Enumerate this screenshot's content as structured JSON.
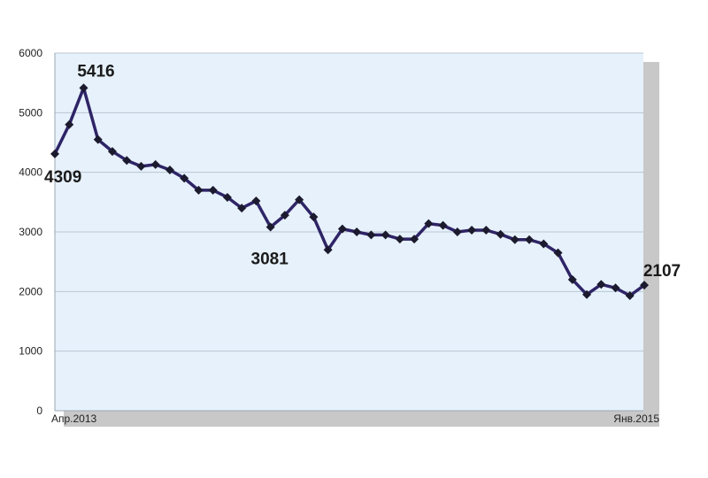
{
  "chart_data": {
    "type": "line",
    "title": "",
    "xlabel": "",
    "ylabel": "",
    "ylim": [
      0,
      6000
    ],
    "yticks": [
      0,
      1000,
      2000,
      3000,
      4000,
      5000,
      6000
    ],
    "x_tick_labels": [
      "Апр.2013",
      "Янв.2015"
    ],
    "grid": "horizontal",
    "legend": "none",
    "colors": {
      "line": "#2e2466",
      "marker": "#1c1a2e",
      "plot_bg": "#e6f1fb",
      "grid": "#b9c6d3",
      "shadow": "#c8c8c8"
    },
    "series": [
      {
        "values": [
          4309,
          4800,
          5416,
          4550,
          4350,
          4200,
          4100,
          4130,
          4040,
          3900,
          3700,
          3700,
          3580,
          3400,
          3520,
          3081,
          3280,
          3540,
          3250,
          2700,
          3050,
          3000,
          2950,
          2950,
          2880,
          2880,
          3140,
          3110,
          3000,
          3030,
          3030,
          2960,
          2870,
          2870,
          2800,
          2650,
          2200,
          1950,
          2120,
          2060,
          1930,
          2107
        ]
      }
    ],
    "annotations": [
      {
        "index": 0,
        "text": "4309"
      },
      {
        "index": 2,
        "text": "5416"
      },
      {
        "index": 15,
        "text": "3081"
      },
      {
        "index": 41,
        "text": "2107"
      }
    ]
  }
}
